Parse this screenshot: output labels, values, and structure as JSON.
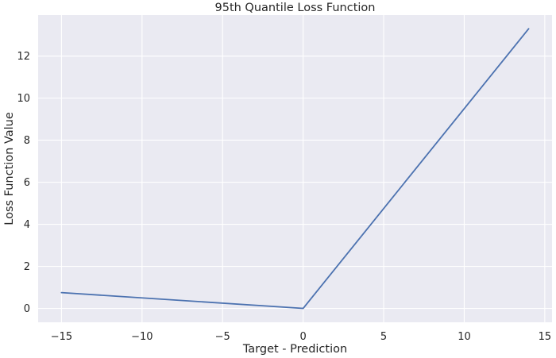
{
  "chart_data": {
    "type": "line",
    "title": "95th Quantile Loss Function",
    "xlabel": "Target - Prediction",
    "ylabel": "Loss Function Value",
    "xlim": [
      -16.45,
      15.45
    ],
    "ylim": [
      -0.66,
      13.95
    ],
    "xticks": [
      -15,
      -10,
      -5,
      0,
      5,
      10,
      15
    ],
    "xtick_labels": [
      "−15",
      "−10",
      "−5",
      "0",
      "5",
      "10",
      "15"
    ],
    "yticks": [
      0,
      2,
      4,
      6,
      8,
      10,
      12
    ],
    "ytick_labels": [
      "0",
      "2",
      "4",
      "6",
      "8",
      "10",
      "12"
    ],
    "grid": true,
    "series": [
      {
        "x": [
          -15,
          0,
          14
        ],
        "y": [
          0.75,
          0.0,
          13.3
        ],
        "color": "#4c72b0"
      }
    ],
    "colors": {
      "plot_background": "#eaeaf2",
      "grid": "#ffffff",
      "line": "#4c72b0",
      "text": "#262626"
    }
  }
}
